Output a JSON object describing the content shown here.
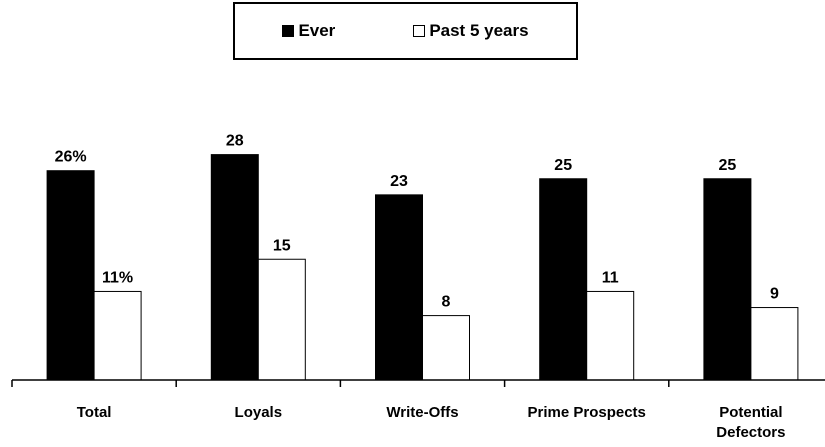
{
  "chart_data": {
    "type": "bar",
    "categories": [
      [
        "Total"
      ],
      [
        "Loyals"
      ],
      [
        "Write-Offs"
      ],
      [
        "Prime Prospects"
      ],
      [
        "Potential",
        "Defectors"
      ]
    ],
    "series": [
      {
        "name": "Ever",
        "values": [
          26,
          28,
          23,
          25,
          25
        ],
        "labels": [
          "26%",
          "28",
          "23",
          "25",
          "25"
        ],
        "color": "#000000"
      },
      {
        "name": "Past 5 years",
        "values": [
          11,
          15,
          8,
          11,
          9
        ],
        "labels": [
          "11%",
          "15",
          "8",
          "11",
          "9"
        ],
        "color": "#ffffff"
      }
    ],
    "title": "",
    "xlabel": "",
    "ylabel": "",
    "ylim": [
      0,
      30
    ],
    "grid": false,
    "legend_position": "top-center"
  }
}
